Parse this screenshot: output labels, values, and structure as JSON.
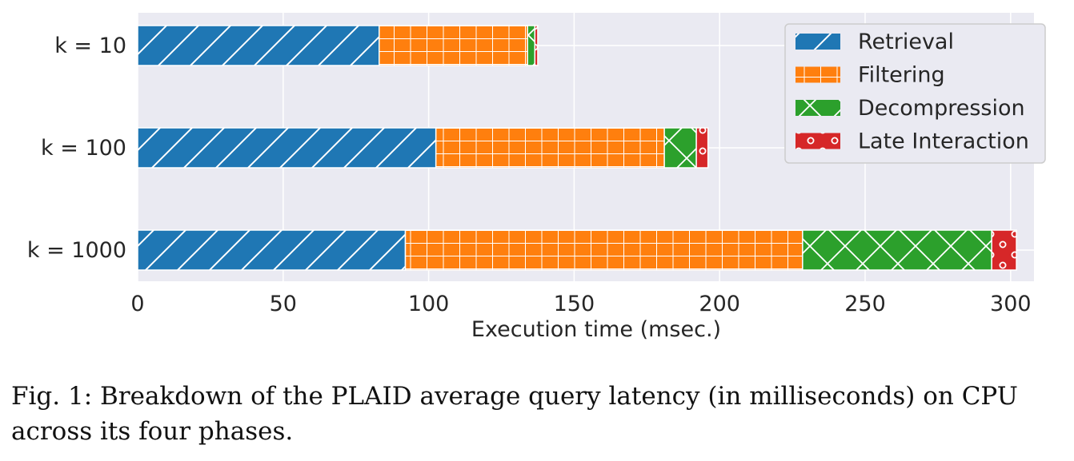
{
  "chart_data": {
    "type": "bar",
    "orientation": "horizontal",
    "stacked": true,
    "categories": [
      "k = 10",
      "k = 100",
      "k = 1000"
    ],
    "series": [
      {
        "name": "Retrieval",
        "color": "#1f77b4",
        "pattern": "diagonal",
        "values": [
          83,
          102.5,
          92
        ]
      },
      {
        "name": "Filtering",
        "color": "#ff7f0e",
        "pattern": "grid",
        "values": [
          51,
          78.5,
          136.5
        ]
      },
      {
        "name": "Decompression",
        "color": "#2ca02c",
        "pattern": "cross",
        "values": [
          2.5,
          11,
          65
        ]
      },
      {
        "name": "Late Interaction",
        "color": "#d62728",
        "pattern": "circles",
        "values": [
          1,
          4,
          8.5
        ]
      }
    ],
    "xlabel": "Execution time (msec.)",
    "xlim": [
      0,
      313
    ],
    "xticks": [
      0,
      50,
      100,
      150,
      200,
      250,
      300
    ],
    "grid": true,
    "legend": "top-right"
  },
  "caption": {
    "line1": "Fig. 1: Breakdown of the PLAID average query latency (in milliseconds) on CPU",
    "line2": "across its four phases."
  }
}
